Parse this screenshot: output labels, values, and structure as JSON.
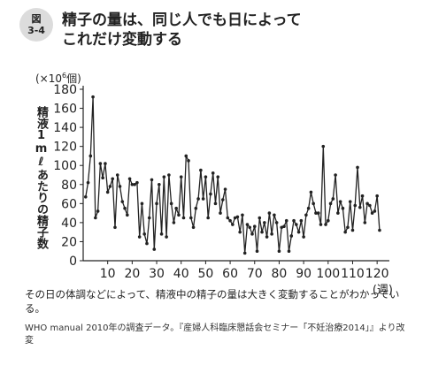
{
  "figure": {
    "badge_top": "図",
    "badge_bottom": "3-4",
    "title_line1": "精子の量は、同じ人でも日によって",
    "title_line2": "これだけ変動する",
    "caption": "その日の体調などによって、精液中の精子の量は大きく変動することがわかっている。",
    "source": "WHO manual 2010年の調査データ。『産婦人科臨床懇話会セミナー「不妊治療2014」』より改変"
  },
  "chart_data": {
    "type": "line",
    "title": "",
    "ylabel": "精液1mℓあたりの精子数",
    "yunit_prefix": "(×10",
    "yunit_exp": "6",
    "yunit_suffix": "個)",
    "xunit": "(週)",
    "ylim": [
      0,
      180
    ],
    "xlim": [
      0,
      125
    ],
    "yticks": [
      0,
      20,
      40,
      60,
      80,
      100,
      120,
      140,
      160,
      180
    ],
    "xticks": [
      10,
      20,
      30,
      40,
      50,
      60,
      70,
      80,
      90,
      100,
      110,
      120
    ],
    "line_color": "#222222",
    "x": [
      1,
      2,
      3,
      4,
      5,
      6,
      7,
      8,
      9,
      10,
      11,
      12,
      13,
      14,
      15,
      16,
      17,
      18,
      19,
      20,
      21,
      22,
      23,
      24,
      25,
      26,
      27,
      28,
      29,
      30,
      31,
      32,
      33,
      34,
      35,
      36,
      37,
      38,
      39,
      40,
      41,
      42,
      43,
      44,
      45,
      46,
      47,
      48,
      49,
      50,
      51,
      52,
      53,
      54,
      55,
      56,
      57,
      58,
      59,
      60,
      61,
      62,
      63,
      64,
      65,
      66,
      67,
      68,
      69,
      70,
      71,
      72,
      73,
      74,
      75,
      76,
      77,
      78,
      79,
      80,
      81,
      82,
      83,
      84,
      85,
      86,
      87,
      88,
      89,
      90,
      91,
      92,
      93,
      94,
      95,
      96,
      97,
      98,
      99,
      100,
      101,
      102,
      103,
      104,
      105,
      106,
      107,
      108,
      109,
      110,
      111,
      112,
      113,
      114,
      115,
      116,
      117,
      118,
      119,
      120,
      121
    ],
    "values": [
      67,
      82,
      110,
      172,
      45,
      52,
      102,
      87,
      102,
      72,
      78,
      86,
      35,
      90,
      78,
      62,
      55,
      48,
      86,
      80,
      80,
      82,
      25,
      60,
      28,
      18,
      45,
      85,
      12,
      60,
      80,
      28,
      88,
      25,
      90,
      60,
      40,
      55,
      48,
      88,
      45,
      110,
      105,
      45,
      35,
      55,
      65,
      95,
      65,
      88,
      45,
      70,
      92,
      60,
      88,
      50,
      64,
      75,
      45,
      42,
      38,
      45,
      46,
      30,
      48,
      8,
      38,
      35,
      28,
      36,
      10,
      45,
      30,
      40,
      25,
      50,
      28,
      48,
      40,
      10,
      35,
      36,
      42,
      10,
      26,
      42,
      38,
      30,
      42,
      25,
      48,
      55,
      72,
      60,
      50,
      50,
      38,
      120,
      38,
      42,
      60,
      65,
      90,
      50,
      62,
      55,
      30,
      35,
      62,
      32,
      58,
      98,
      56,
      68,
      40,
      60,
      58,
      50,
      52,
      68,
      32
    ]
  }
}
